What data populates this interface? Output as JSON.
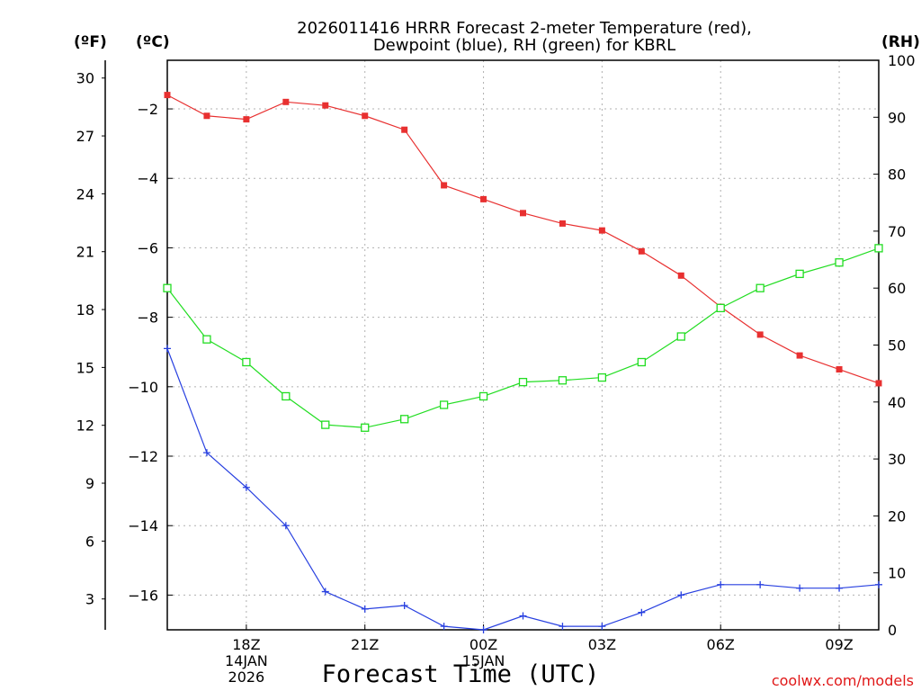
{
  "chart_data": {
    "type": "line",
    "title": [
      "2026011416 HRRR Forecast 2-meter Temperature (red),",
      "Dewpoint (blue), RH (green) for KBRL"
    ],
    "units": {
      "left_outer": "(ºF)",
      "left_inner": "(ºC)",
      "right": "(RH)"
    },
    "xlabel": "Forecast Time (UTC)",
    "x_hours": [
      16,
      17,
      18,
      19,
      20,
      21,
      22,
      23,
      24,
      25,
      26,
      27,
      28,
      29,
      30,
      31,
      32,
      33,
      34
    ],
    "xlim": [
      16,
      34
    ],
    "x_ticks": [
      {
        "hour": 18,
        "lines": [
          "18Z",
          "14JAN",
          "2026"
        ]
      },
      {
        "hour": 21,
        "lines": [
          "21Z"
        ]
      },
      {
        "hour": 24,
        "lines": [
          "00Z",
          "15JAN"
        ]
      },
      {
        "hour": 27,
        "lines": [
          "03Z"
        ]
      },
      {
        "hour": 30,
        "lines": [
          "06Z"
        ]
      },
      {
        "hour": 33,
        "lines": [
          "09Z"
        ]
      }
    ],
    "celsius_lim": [
      -17.0,
      -0.6
    ],
    "celsius_ticks": [
      -2,
      -4,
      -6,
      -8,
      -10,
      -12,
      -14,
      -16
    ],
    "fahrenheit_ticks": [
      30,
      27,
      24,
      21,
      18,
      15,
      12,
      9,
      6,
      3
    ],
    "rh_lim": [
      0,
      100
    ],
    "rh_ticks": [
      0,
      10,
      20,
      30,
      40,
      50,
      60,
      70,
      80,
      90,
      100
    ],
    "series": [
      {
        "name": "Temperature",
        "color": "#e83030",
        "axis": "celsius",
        "marker": "filled-square",
        "values": [
          -1.6,
          -2.2,
          -2.3,
          -1.8,
          -1.9,
          -2.2,
          -2.6,
          -4.2,
          -4.6,
          -5.0,
          -5.3,
          -5.5,
          -6.1,
          -6.8,
          -7.7,
          -8.5,
          -9.1,
          -9.5,
          -9.9
        ]
      },
      {
        "name": "Dewpoint",
        "color": "#2840e0",
        "axis": "celsius",
        "marker": "plus",
        "values": [
          -8.9,
          -11.9,
          -12.9,
          -14.0,
          -15.9,
          -16.4,
          -16.3,
          -16.9,
          -17.0,
          -16.6,
          -16.9,
          -16.9,
          -16.5,
          -16.0,
          -15.7,
          -15.7,
          -15.8,
          -15.8,
          -15.7
        ]
      },
      {
        "name": "RH",
        "color": "#22dd22",
        "axis": "rh",
        "marker": "open-square",
        "values": [
          60,
          51,
          47,
          41,
          36,
          35.5,
          37,
          39.5,
          41,
          43.5,
          43.8,
          44.3,
          47,
          51.5,
          56.5,
          60,
          62.5,
          64.5,
          67
        ]
      }
    ],
    "credit": "coolwx.com/models"
  }
}
